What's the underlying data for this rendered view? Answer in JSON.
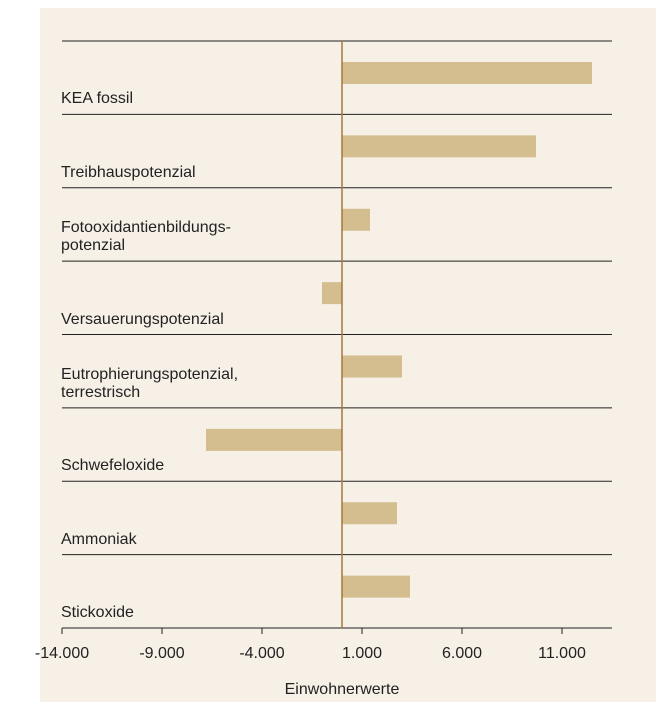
{
  "chart_data": {
    "type": "barh",
    "categories": [
      "KEA fossil",
      "Treibhauspotenzial",
      "Fotooxidantienbildungs-\npotenzial",
      "Versauerungspotenzial",
      "Eutrophierungspotenzial,\nterrestrisch",
      "Schwefeloxide",
      "Ammoniak",
      "Stickoxide"
    ],
    "values": [
      12500,
      9700,
      1400,
      -1000,
      3000,
      -6800,
      2750,
      3400
    ],
    "color": "#d4bd8e",
    "xlim": [
      -14000,
      13500
    ],
    "xticks": [
      {
        "value": -14000,
        "label": "-14.000"
      },
      {
        "value": -9000,
        "label": "-9.000"
      },
      {
        "value": -4000,
        "label": "-4.000"
      },
      {
        "value": 1000,
        "label": "1.000"
      },
      {
        "value": 6000,
        "label": "6.000"
      },
      {
        "value": 11000,
        "label": "11.000"
      }
    ],
    "xlabel": "Einwohnerwerte"
  }
}
